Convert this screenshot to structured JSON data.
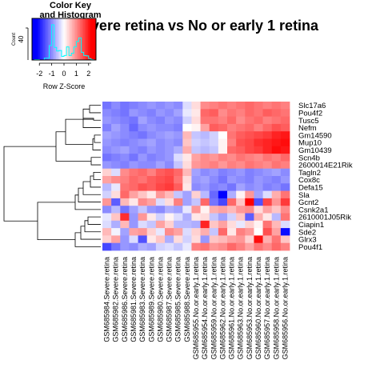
{
  "chart_data": {
    "type": "heatmap",
    "title": "Severe retina vs No or early 1 retina",
    "rows": [
      "Slc17a6",
      "Pou4f2",
      "Tusc5",
      "Nefm",
      "Gm14590",
      "Mup10",
      "Gm10439",
      "Scn4b",
      "2600014E21Rik",
      "Tagln2",
      "Cox8c",
      "Defa15",
      "Sla",
      "Gcnt2",
      "Csnk2a1",
      "2610001J05Rik",
      "Ciapin1",
      "Sde2",
      "Glrx3",
      "Pou4f1"
    ],
    "columns": [
      "GSM685984.Severe.retina",
      "GSM685982.Severe.retina",
      "GSM685986.Severe.retina",
      "GSM685981.Severe.retina",
      "GSM685983.Severe.retina",
      "GSM685989.Severe.retina",
      "GSM685980.Severe.retina",
      "GSM685987.Severe.retina",
      "GSM685985.Severe.retina",
      "GSM685988.Severe.retina",
      "GSM685955.No.or.early.1.retina",
      "GSM685954.No.or.early.1.retina",
      "GSM685959.No.or.early.1.retina",
      "GSM685962.No.or.early.1.retina",
      "GSM685961.No.or.early.1.retina",
      "GSM685963.No.or.early.1.retina",
      "GSM685953.No.or.early.1.retina",
      "GSM685960.No.or.early.1.retina",
      "GSM685957.No.or.early.1.retina",
      "GSM685958.No.or.early.1.retina",
      "GSM685956.No.or.early.1.retina"
    ],
    "values": [
      [
        -1.2,
        -1.0,
        -1.2,
        -1.1,
        -1.0,
        -0.9,
        -1.0,
        -0.9,
        -1.0,
        -0.3,
        0.3,
        1.0,
        1.1,
        1.2,
        1.1,
        1.2,
        1.3,
        1.2,
        1.1,
        1.2,
        1.1
      ],
      [
        -1.0,
        -1.1,
        -1.2,
        -0.9,
        -1.0,
        -1.1,
        -0.9,
        -1.0,
        -0.8,
        -0.2,
        0.2,
        1.3,
        1.4,
        1.0,
        1.2,
        1.1,
        1.3,
        1.2,
        1.4,
        1.3,
        1.2
      ],
      [
        -0.9,
        -1.0,
        -1.1,
        -1.2,
        -0.8,
        -1.0,
        -1.1,
        -0.9,
        -1.0,
        -0.4,
        0.3,
        1.2,
        1.2,
        1.1,
        1.3,
        1.0,
        1.2,
        1.3,
        1.1,
        1.2,
        1.3
      ],
      [
        -1.1,
        -0.8,
        -1.0,
        -1.3,
        -1.0,
        -0.9,
        -1.0,
        -1.0,
        -1.1,
        0.0,
        0.1,
        0.8,
        1.4,
        1.3,
        1.1,
        1.2,
        1.3,
        1.1,
        1.3,
        1.5,
        1.4
      ],
      [
        -0.8,
        -0.9,
        -1.0,
        -1.1,
        -1.2,
        -1.0,
        -0.9,
        -0.8,
        -0.9,
        0.6,
        -0.5,
        -0.6,
        -0.4,
        0.0,
        1.2,
        1.4,
        1.5,
        1.6,
        1.7,
        1.9,
        2.0
      ],
      [
        -0.9,
        -1.0,
        -1.1,
        -1.0,
        -0.9,
        -0.8,
        -1.0,
        -0.9,
        -1.0,
        0.5,
        -0.4,
        -0.5,
        -0.4,
        0.1,
        1.1,
        1.5,
        1.6,
        1.8,
        1.9,
        2.0,
        2.1
      ],
      [
        -1.0,
        -0.9,
        -0.8,
        -1.0,
        -1.1,
        -0.9,
        -1.0,
        -0.9,
        -0.7,
        0.7,
        -0.5,
        -0.6,
        -0.5,
        0.1,
        1.3,
        1.4,
        1.6,
        1.7,
        1.9,
        2.1,
        2.0
      ],
      [
        -1.2,
        -1.1,
        -1.0,
        -1.2,
        -0.9,
        -1.1,
        -1.0,
        -0.9,
        -0.3,
        0.2,
        0.8,
        1.0,
        0.9,
        1.1,
        1.0,
        1.2,
        1.1,
        1.0,
        1.2,
        1.1,
        1.3
      ],
      [
        -0.9,
        -1.0,
        -1.1,
        -0.9,
        -1.0,
        -1.0,
        -0.8,
        -1.0,
        -0.5,
        0.3,
        0.9,
        1.0,
        1.1,
        0.9,
        1.1,
        1.0,
        1.2,
        1.1,
        1.0,
        1.2,
        1.1
      ],
      [
        0.4,
        -0.3,
        1.0,
        1.2,
        1.3,
        1.1,
        1.4,
        1.5,
        1.3,
        0.6,
        -0.8,
        -1.0,
        -0.9,
        -1.1,
        -1.0,
        -0.9,
        -1.1,
        -1.0,
        -0.9,
        -0.8,
        -1.0
      ],
      [
        0.8,
        1.0,
        1.1,
        1.3,
        1.2,
        1.4,
        1.5,
        1.6,
        1.2,
        0.3,
        -0.9,
        -0.8,
        -1.0,
        -1.2,
        -0.9,
        -1.0,
        -1.1,
        -0.9,
        -1.0,
        -1.1,
        -0.9
      ],
      [
        -0.6,
        -0.2,
        1.2,
        1.3,
        1.5,
        1.4,
        1.6,
        1.7,
        1.4,
        0.2,
        -1.0,
        -0.9,
        -1.1,
        -1.0,
        -1.2,
        -0.8,
        -1.0,
        -0.9,
        -1.1,
        -1.0,
        -1.2
      ],
      [
        -0.4,
        0.3,
        1.3,
        0.8,
        0.5,
        0.2,
        0.9,
        0.6,
        -0.5,
        -0.8,
        0.4,
        -0.6,
        -1.3,
        -2.2,
        -0.7,
        0.1,
        0.9,
        -0.8,
        -0.3,
        0.7,
        1.2
      ],
      [
        0.9,
        -1.4,
        0.6,
        0.2,
        1.0,
        0.8,
        -0.3,
        0.3,
        1.1,
        -0.8,
        -0.5,
        1.3,
        -1.2,
        -1.6,
        1.3,
        0.5,
        2.2,
        -1.5,
        1.6,
        0.9,
        1.7
      ],
      [
        -1.0,
        -0.6,
        -1.2,
        -0.8,
        -0.5,
        -0.9,
        -1.0,
        -0.7,
        -0.8,
        -0.2,
        0.9,
        0.1,
        0.7,
        0.8,
        0.6,
        0.9,
        1.0,
        0.3,
        0.8,
        0.5,
        1.0
      ],
      [
        -0.2,
        0.5,
        1.8,
        -0.9,
        0.9,
        0.2,
        -0.4,
        0.1,
        -0.3,
        -0.7,
        0.2,
        0.3,
        -0.5,
        -0.8,
        -0.4,
        0.5,
        -1.4,
        0.7,
        0.2,
        -0.6,
        1.2
      ],
      [
        -0.3,
        -0.7,
        0.6,
        -0.9,
        -0.3,
        -0.5,
        0.8,
        0.4,
        -0.6,
        -0.6,
        -0.7,
        1.9,
        0.5,
        0.8,
        0.3,
        -0.2,
        0.4,
        0.1,
        1.2,
        0.6,
        -0.3
      ],
      [
        0.6,
        -0.1,
        -0.8,
        0.8,
        0.9,
        0.4,
        -0.2,
        1.0,
        0.8,
        -0.3,
        0.4,
        0.7,
        -0.5,
        1.3,
        0.2,
        1.1,
        0.9,
        0.0,
        1.5,
        0.8,
        -2.1
      ],
      [
        0.4,
        0.8,
        -0.9,
        -0.3,
        -1.5,
        0.2,
        0.5,
        -0.7,
        0.3,
        -0.4,
        0.3,
        -0.9,
        0.5,
        0.6,
        0.8,
        0.9,
        0.4,
        2.1,
        0.7,
        1.2,
        0.5
      ],
      [
        -1.6,
        -1.2,
        -0.9,
        -1.0,
        -0.7,
        -0.8,
        -0.4,
        -0.3,
        -0.5,
        -0.2,
        1.1,
        1.2,
        0.9,
        1.0,
        1.3,
        1.1,
        0.8,
        1.2,
        1.0,
        1.3,
        1.1
      ]
    ],
    "color_key": {
      "title_line1": "Color Key",
      "title_line2": "and Histogram",
      "ylabel": "Count",
      "ytick": "40",
      "xlabel": "Row Z-Score",
      "xticks": [
        "-2",
        "-1",
        "0",
        "1",
        "2"
      ],
      "xlim": [
        -2.6,
        2.6
      ]
    },
    "colors": {
      "low": "#0000ff",
      "mid": "#ffffff",
      "high": "#ff0000",
      "histogram": "#00ffff"
    }
  }
}
